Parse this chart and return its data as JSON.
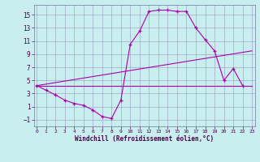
{
  "bg_color": "#c8eef0",
  "grid_color": "#9999bb",
  "line_color": "#aa00aa",
  "xlabel": "Windchill (Refroidissement éolien,°C)",
  "line1_x": [
    0,
    1,
    2,
    3,
    4,
    5,
    6,
    7,
    8,
    9,
    10,
    11,
    12,
    13,
    14,
    15,
    16,
    17,
    18,
    19,
    20,
    21,
    22
  ],
  "line1_y": [
    4.2,
    3.5,
    2.8,
    2.0,
    1.5,
    1.2,
    0.5,
    -0.5,
    -0.8,
    2.0,
    10.5,
    12.5,
    15.5,
    15.7,
    15.7,
    15.5,
    15.5,
    13.0,
    11.2,
    9.5,
    5.0,
    6.8,
    4.2
  ],
  "line2_x": [
    0,
    23
  ],
  "line2_y": [
    4.2,
    9.5
  ],
  "line3_x": [
    0,
    23
  ],
  "line3_y": [
    4.2,
    4.2
  ],
  "ylim": [
    -2.0,
    16.5
  ],
  "xlim": [
    -0.3,
    23.3
  ],
  "yticks": [
    -1,
    1,
    3,
    5,
    7,
    9,
    11,
    13,
    15
  ],
  "xticks": [
    0,
    1,
    2,
    3,
    4,
    5,
    6,
    7,
    8,
    9,
    10,
    11,
    12,
    13,
    14,
    15,
    16,
    17,
    18,
    19,
    20,
    21,
    22,
    23
  ],
  "tick_color": "#550055",
  "label_color": "#440044"
}
